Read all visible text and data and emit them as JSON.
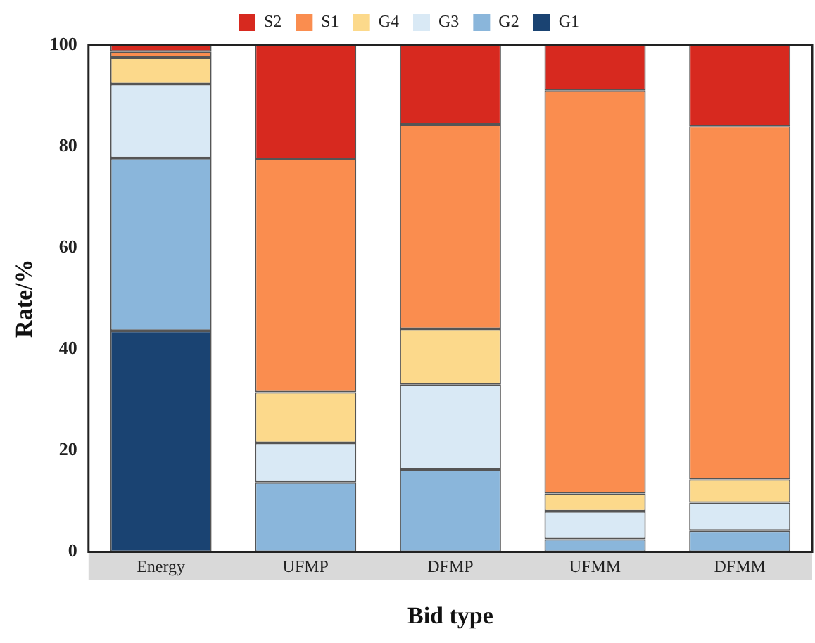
{
  "chart_data": {
    "type": "bar",
    "stacked": true,
    "xlabel": "Bid type",
    "ylabel": "Rate/%",
    "categories": [
      "Energy",
      "UFMP",
      "DFMP",
      "UFMM",
      "DFMM"
    ],
    "series": [
      {
        "name": "G1",
        "color": "#1a4372",
        "values": [
          43.6,
          0,
          0,
          0,
          0
        ]
      },
      {
        "name": "G2",
        "color": "#8ab6db",
        "values": [
          34.1,
          13.7,
          16.3,
          2.5,
          4.2
        ]
      },
      {
        "name": "G3",
        "color": "#d9e9f5",
        "values": [
          14.6,
          7.8,
          16.7,
          5.5,
          5.5
        ]
      },
      {
        "name": "G4",
        "color": "#fcd98b",
        "values": [
          5.2,
          10,
          11,
          3.5,
          4.6
        ]
      },
      {
        "name": "S1",
        "color": "#fa8d4f",
        "values": [
          1.2,
          46,
          40.3,
          79.5,
          69.7
        ]
      },
      {
        "name": "S2",
        "color": "#d7291f",
        "values": [
          1.3,
          22.5,
          15.7,
          9,
          16
        ]
      }
    ],
    "ylim": [
      0,
      100
    ],
    "yticks": [
      0,
      20,
      40,
      60,
      80,
      100
    ],
    "grid": false,
    "legend": "top"
  }
}
